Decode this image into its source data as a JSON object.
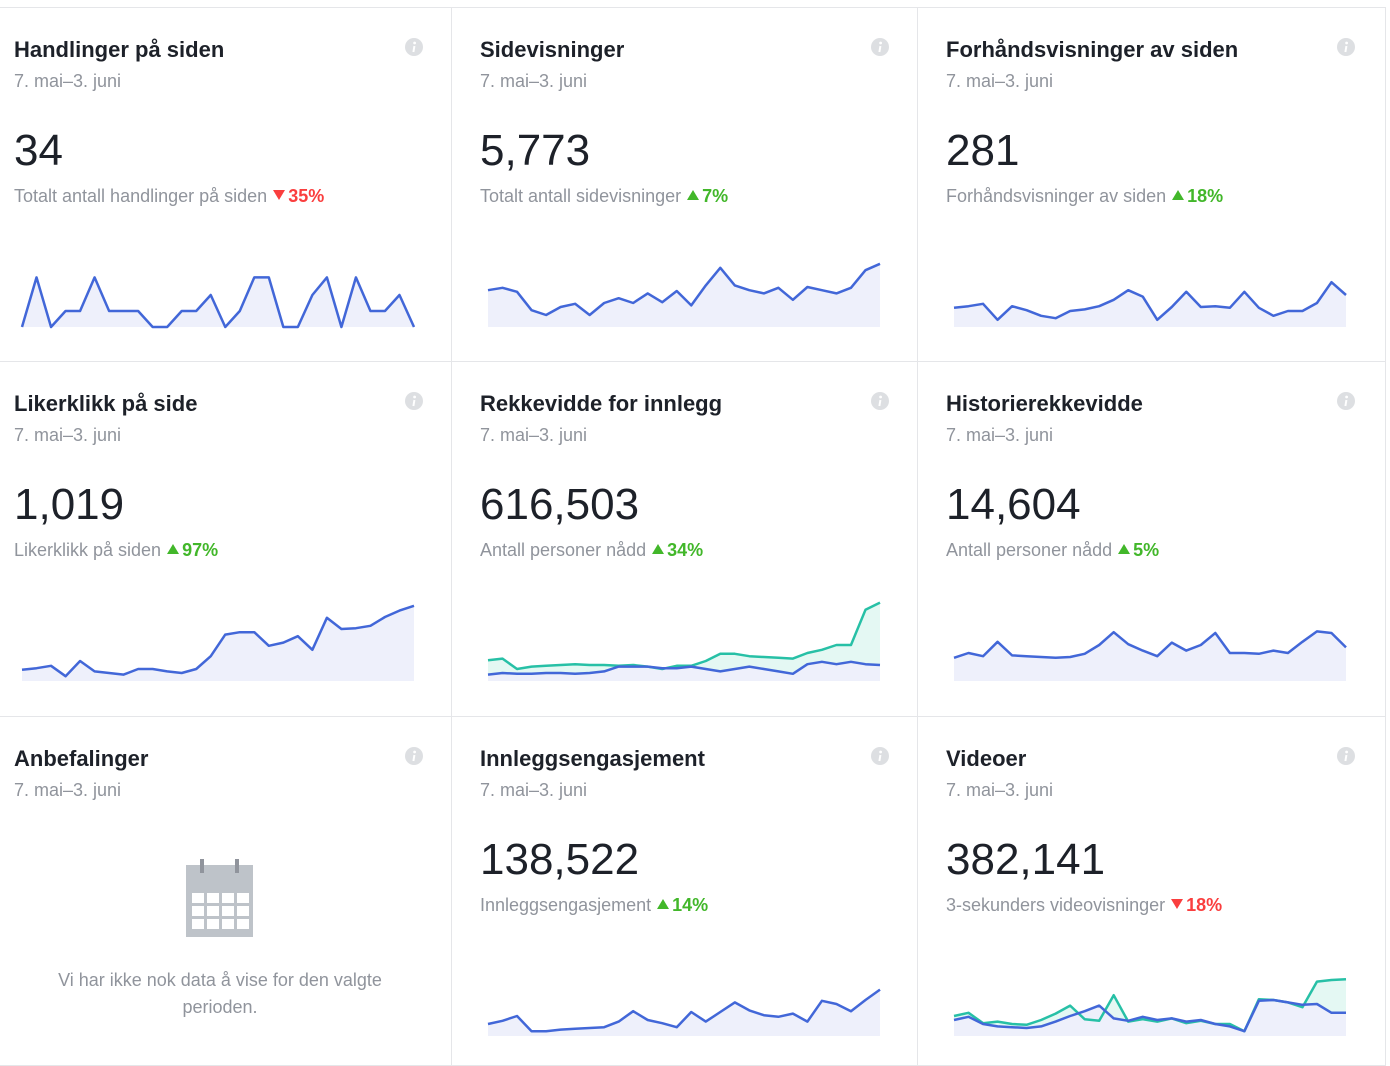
{
  "cards": [
    {
      "title": "Handlinger på siden",
      "date": "7. mai–3. juni",
      "value": "34",
      "subtitle": "Totalt antall handlinger på siden",
      "change": "35%",
      "direction": "down",
      "series": [
        {
          "color": "#4267d8",
          "values": [
            0,
            62,
            0,
            20,
            20,
            62,
            20,
            20,
            20,
            0,
            0,
            20,
            20,
            40,
            0,
            20,
            62,
            62,
            0,
            0,
            40,
            62,
            0,
            62,
            20,
            20,
            40,
            0
          ]
        }
      ]
    },
    {
      "title": "Sidevisninger",
      "date": "7. mai–3. juni",
      "value": "5,773",
      "subtitle": "Totalt antall sidevisninger",
      "change": "7%",
      "direction": "up",
      "series": [
        {
          "color": "#4267d8",
          "values": [
            46,
            49,
            44,
            21,
            15,
            25,
            29,
            15,
            30,
            36,
            30,
            42,
            31,
            45,
            27,
            52,
            74,
            52,
            46,
            42,
            49,
            34,
            50,
            46,
            42,
            49,
            71,
            79
          ]
        }
      ]
    },
    {
      "title": "Forhåndsvisninger av siden",
      "date": "7. mai–3. juni",
      "value": "281",
      "subtitle": "Forhåndsvisninger av siden",
      "change": "18%",
      "direction": "up",
      "series": [
        {
          "color": "#4267d8",
          "values": [
            24,
            26,
            29,
            9,
            26,
            21,
            14,
            11,
            20,
            22,
            26,
            34,
            46,
            38,
            9,
            25,
            44,
            25,
            26,
            24,
            44,
            24,
            14,
            20,
            20,
            30,
            56,
            40
          ]
        }
      ]
    },
    {
      "title": "Likerklikk på side",
      "date": "7. mai–3. juni",
      "value": "1,019",
      "subtitle": "Likerklikk på siden",
      "change": "97%",
      "direction": "up",
      "series": [
        {
          "color": "#4267d8",
          "values": [
            14,
            16,
            19,
            6,
            25,
            12,
            10,
            8,
            15,
            15,
            12,
            10,
            15,
            31,
            58,
            61,
            61,
            44,
            48,
            56,
            39,
            79,
            65,
            66,
            69,
            80,
            88,
            94
          ]
        }
      ]
    },
    {
      "title": "Rekkevidde for innlegg",
      "date": "7. mai–3. juni",
      "value": "616,503",
      "subtitle": "Antall personer nådd",
      "change": "34%",
      "direction": "up",
      "series": [
        {
          "color": "#27c0a6",
          "values": [
            26,
            28,
            15,
            18,
            19,
            20,
            21,
            20,
            20,
            19,
            20,
            18,
            15,
            19,
            19,
            25,
            34,
            34,
            31,
            30,
            29,
            28,
            35,
            39,
            45,
            45,
            89,
            98
          ]
        },
        {
          "color": "#4267d8",
          "values": [
            8,
            10,
            9,
            9,
            10,
            10,
            9,
            10,
            12,
            18,
            18,
            18,
            16,
            16,
            18,
            15,
            12,
            15,
            18,
            15,
            12,
            9,
            21,
            24,
            21,
            24,
            21,
            20
          ]
        }
      ]
    },
    {
      "title": "Historierekkevidde",
      "date": "7. mai–3. juni",
      "value": "14,604",
      "subtitle": "Antall personer nådd",
      "change": "5%",
      "direction": "up",
      "series": [
        {
          "color": "#4267d8",
          "values": [
            29,
            35,
            31,
            49,
            32,
            31,
            30,
            29,
            30,
            34,
            45,
            61,
            46,
            38,
            31,
            48,
            38,
            45,
            60,
            35,
            35,
            34,
            38,
            35,
            49,
            62,
            60,
            42
          ]
        }
      ]
    },
    {
      "title": "Anbefalinger",
      "date": "7. mai–3. juni",
      "message": "Vi har ikke nok data å vise for den valgte perioden."
    },
    {
      "title": "Innleggsengasjement",
      "date": "7. mai–3. juni",
      "value": "138,522",
      "subtitle": "Innleggsengasjement",
      "change": "14%",
      "direction": "up",
      "series": [
        {
          "color": "#4267d8",
          "values": [
            15,
            19,
            25,
            6,
            6,
            8,
            9,
            10,
            11,
            18,
            31,
            20,
            16,
            11,
            30,
            18,
            30,
            42,
            32,
            26,
            24,
            28,
            18,
            44,
            40,
            31,
            45,
            58
          ]
        }
      ]
    },
    {
      "title": "Videoer",
      "date": "7. mai–3. juni",
      "value": "382,141",
      "subtitle": "3-sekunders videovisninger",
      "change": "18%",
      "direction": "down",
      "series": [
        {
          "color": "#27c0a6",
          "values": [
            25,
            29,
            16,
            18,
            15,
            14,
            20,
            28,
            38,
            21,
            19,
            51,
            18,
            21,
            18,
            22,
            16,
            19,
            15,
            15,
            6,
            46,
            45,
            42,
            36,
            68,
            70,
            71
          ]
        },
        {
          "color": "#4267d8",
          "values": [
            20,
            24,
            15,
            12,
            11,
            10,
            12,
            18,
            25,
            31,
            38,
            22,
            19,
            24,
            20,
            22,
            18,
            20,
            15,
            12,
            6,
            44,
            45,
            42,
            39,
            40,
            29,
            29
          ]
        }
      ]
    }
  ]
}
